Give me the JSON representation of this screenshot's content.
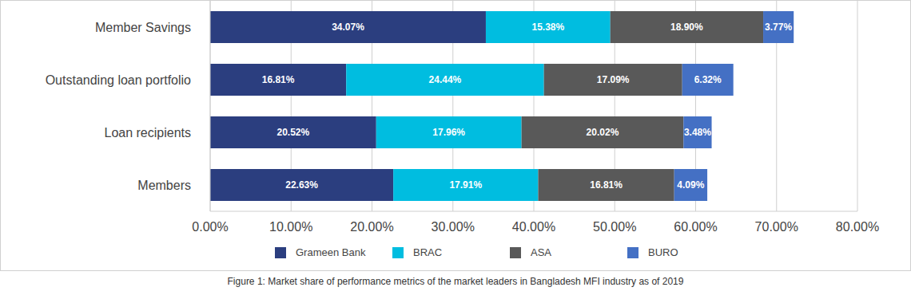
{
  "chart_data": {
    "type": "bar",
    "title": "Figure 1: Market share of performance metrics of the market leaders in Bangladesh MFI industry as of 2019",
    "orientation": "horizontal",
    "stacked": true,
    "data_labels": true,
    "grid": true,
    "legend": "bottom",
    "categories": [
      "Member Savings",
      "Outstanding loan portfolio",
      "Loan recipients",
      "Members"
    ],
    "xlim": [
      0,
      80
    ],
    "xticks": [
      {
        "value": 0,
        "label": "0.00%"
      },
      {
        "value": 10,
        "label": "10.00%"
      },
      {
        "value": 20,
        "label": "20.00%"
      },
      {
        "value": 30,
        "label": "30.00%"
      },
      {
        "value": 40,
        "label": "40.00%"
      },
      {
        "value": 50,
        "label": "50.00%"
      },
      {
        "value": 60,
        "label": "60.00%"
      },
      {
        "value": 70,
        "label": "70.00%"
      },
      {
        "value": 80,
        "label": "80.00%"
      }
    ],
    "series": [
      {
        "name": "Grameen Bank",
        "color": "#2b3e7f",
        "values": [
          34.07,
          16.81,
          20.52,
          22.63
        ],
        "value_labels": [
          "34.07%",
          "16.81%",
          "20.52%",
          "22.63%"
        ]
      },
      {
        "name": "BRAC",
        "color": "#00bde0",
        "values": [
          15.38,
          24.44,
          17.96,
          17.91
        ],
        "value_labels": [
          "15.38%",
          "24.44%",
          "17.96%",
          "17.91%"
        ]
      },
      {
        "name": "ASA",
        "color": "#595959",
        "values": [
          18.9,
          17.09,
          20.02,
          16.81
        ],
        "value_labels": [
          "18.90%",
          "17.09%",
          "20.02%",
          "16.81%"
        ]
      },
      {
        "name": "BURO",
        "color": "#4470c4",
        "values": [
          3.77,
          6.32,
          3.48,
          4.09
        ],
        "value_labels": [
          "3.77%",
          "6.32%",
          "3.48%",
          "4.09%"
        ]
      }
    ]
  }
}
